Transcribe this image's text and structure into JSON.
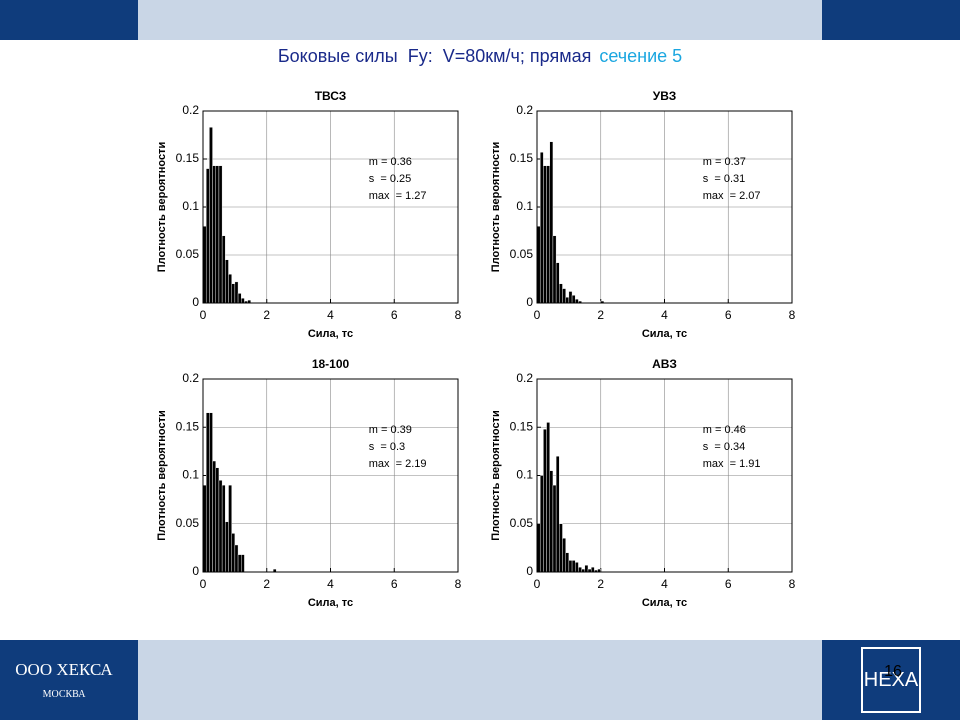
{
  "slide": {
    "title": "Боковые силы  Fy:  V=80км/ч; прямая",
    "title_highlight": "сечение 5",
    "company": "ООО ХЕКСА",
    "city": "МОСКВА",
    "page": "16",
    "logo": "HEXA"
  },
  "chart_data": [
    {
      "type": "histogram",
      "title": "ТВСЗ",
      "x_label": "Сила, тс",
      "y_label": "Плотность вероятности",
      "color": "#000000",
      "grid": true,
      "bins": [
        0,
        0.1,
        0.2,
        0.3,
        0.4,
        0.5,
        0.6,
        0.7,
        0.8,
        0.9,
        1.0,
        1.1,
        1.2,
        1.3,
        1.4,
        1.5
      ],
      "counts": [
        0.08,
        0.14,
        0.183,
        0.143,
        0.143,
        0.143,
        0.07,
        0.045,
        0.03,
        0.02,
        0.022,
        0.01,
        0.005,
        0.002,
        0.003
      ],
      "xlim": [
        0,
        8
      ],
      "ylim": [
        0,
        0.2
      ],
      "xticks": [
        0,
        2,
        4,
        6,
        8
      ],
      "yticks": [
        0,
        0.05,
        0.1,
        0.15,
        0.2
      ],
      "annotations": [
        "m = 0.36",
        "s  = 0.25",
        "max  = 1.27"
      ]
    },
    {
      "type": "histogram",
      "title": "УВЗ",
      "x_label": "Сила, тс",
      "y_label": "Плотность вероятности",
      "color": "#000000",
      "grid": true,
      "bins": [
        0,
        0.1,
        0.2,
        0.3,
        0.4,
        0.5,
        0.6,
        0.7,
        0.8,
        0.9,
        1.0,
        1.1,
        1.2,
        1.3,
        1.4,
        1.5,
        1.6,
        1.7,
        1.8,
        1.9,
        2.0,
        2.1
      ],
      "counts": [
        0.08,
        0.157,
        0.143,
        0.143,
        0.168,
        0.07,
        0.042,
        0.02,
        0.015,
        0.006,
        0.012,
        0.008,
        0.004,
        0.002,
        0,
        0,
        0,
        0,
        0,
        0,
        0.002
      ],
      "xlim": [
        0,
        8
      ],
      "ylim": [
        0,
        0.2
      ],
      "xticks": [
        0,
        2,
        4,
        6,
        8
      ],
      "yticks": [
        0,
        0.05,
        0.1,
        0.15,
        0.2
      ],
      "annotations": [
        "m = 0.37",
        "s  = 0.31",
        "max  = 2.07"
      ]
    },
    {
      "type": "histogram",
      "title": "18-100",
      "x_label": "Сила, тс",
      "y_label": "Плотность вероятности",
      "color": "#000000",
      "grid": true,
      "bins": [
        0,
        0.1,
        0.2,
        0.3,
        0.4,
        0.5,
        0.6,
        0.7,
        0.8,
        0.9,
        1.0,
        1.1,
        1.2,
        1.3,
        1.4,
        1.5,
        1.6,
        1.7,
        1.8,
        1.9,
        2.0,
        2.1,
        2.2,
        2.3
      ],
      "counts": [
        0.09,
        0.165,
        0.165,
        0.115,
        0.108,
        0.095,
        0.09,
        0.052,
        0.09,
        0.04,
        0.028,
        0.018,
        0.018,
        0,
        0,
        0,
        0,
        0,
        0,
        0,
        0,
        0,
        0.003
      ],
      "xlim": [
        0,
        8
      ],
      "ylim": [
        0,
        0.2
      ],
      "xticks": [
        0,
        2,
        4,
        6,
        8
      ],
      "yticks": [
        0,
        0.05,
        0.1,
        0.15,
        0.2
      ],
      "annotations": [
        "m = 0.39",
        "s  = 0.3",
        "max  = 2.19"
      ]
    },
    {
      "type": "histogram",
      "title": "АВЗ",
      "x_label": "Сила, тс",
      "y_label": "Плотность вероятности",
      "color": "#000000",
      "grid": true,
      "bins": [
        0,
        0.1,
        0.2,
        0.3,
        0.4,
        0.5,
        0.6,
        0.7,
        0.8,
        0.9,
        1.0,
        1.1,
        1.2,
        1.3,
        1.4,
        1.5,
        1.6,
        1.7,
        1.8,
        1.9,
        2.0
      ],
      "counts": [
        0.05,
        0.1,
        0.148,
        0.155,
        0.105,
        0.09,
        0.12,
        0.05,
        0.035,
        0.02,
        0.012,
        0.012,
        0.01,
        0.005,
        0.003,
        0.007,
        0.003,
        0.005,
        0.002,
        0.003
      ],
      "xlim": [
        0,
        8
      ],
      "ylim": [
        0,
        0.2
      ],
      "xticks": [
        0,
        2,
        4,
        6,
        8
      ],
      "yticks": [
        0,
        0.05,
        0.1,
        0.15,
        0.2
      ],
      "annotations": [
        "m = 0.46",
        "s  = 0.34",
        "max  = 1.91"
      ]
    }
  ]
}
